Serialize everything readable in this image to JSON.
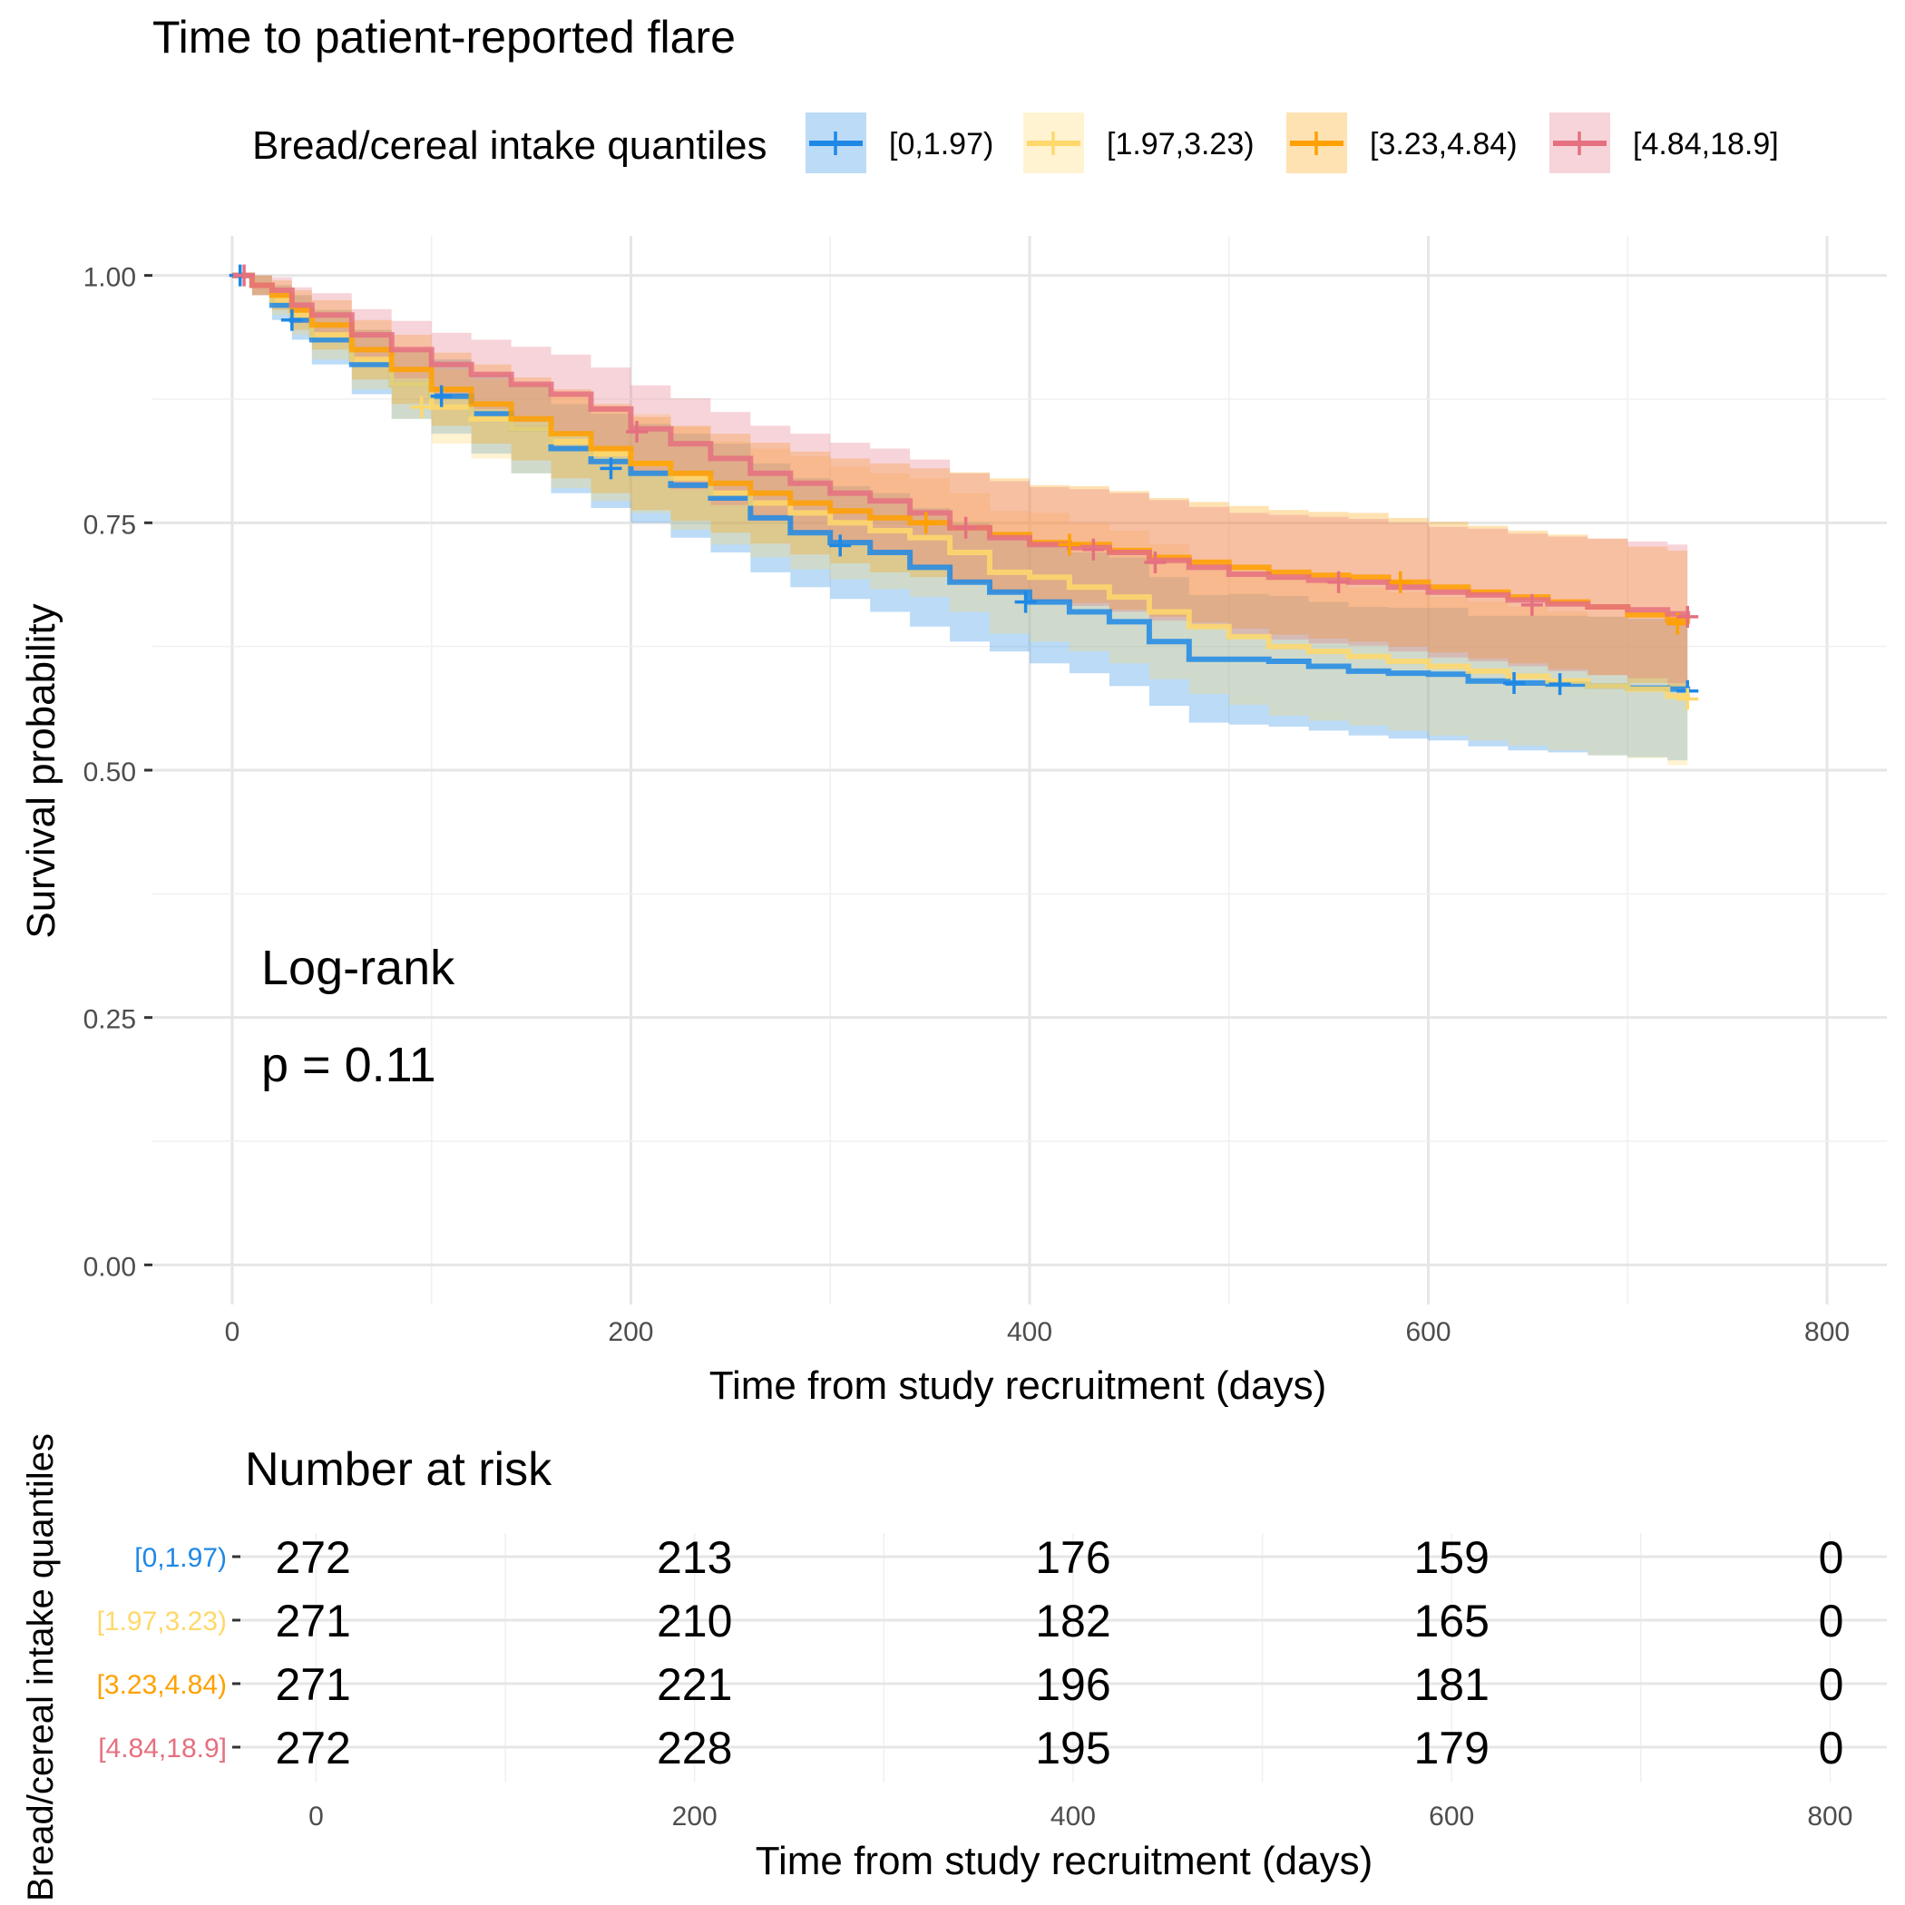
{
  "chart_data": {
    "type": "line",
    "subtype": "kaplan-meier",
    "title": "Time to patient-reported flare",
    "legend": {
      "title": "Bread/cereal intake quantiles",
      "placement": "top"
    },
    "series": [
      {
        "name": "[0,1.97)",
        "color": "#1E88E5",
        "x": [
          0,
          10,
          20,
          30,
          40,
          60,
          80,
          100,
          120,
          140,
          160,
          180,
          200,
          220,
          240,
          260,
          280,
          300,
          320,
          340,
          360,
          380,
          400,
          420,
          440,
          460,
          480,
          500,
          520,
          540,
          560,
          580,
          600,
          620,
          640,
          660,
          680,
          700,
          720,
          730
        ],
        "survival": [
          1.0,
          0.99,
          0.97,
          0.955,
          0.935,
          0.91,
          0.89,
          0.878,
          0.86,
          0.845,
          0.825,
          0.812,
          0.8,
          0.788,
          0.775,
          0.755,
          0.74,
          0.73,
          0.72,
          0.705,
          0.69,
          0.68,
          0.67,
          0.66,
          0.65,
          0.63,
          0.612,
          0.612,
          0.61,
          0.605,
          0.6,
          0.598,
          0.597,
          0.59,
          0.588,
          0.587,
          0.585,
          0.583,
          0.582,
          0.58
        ],
        "lower": [
          1.0,
          0.98,
          0.955,
          0.935,
          0.91,
          0.88,
          0.855,
          0.84,
          0.82,
          0.8,
          0.78,
          0.765,
          0.75,
          0.735,
          0.72,
          0.7,
          0.685,
          0.673,
          0.66,
          0.645,
          0.63,
          0.62,
          0.608,
          0.598,
          0.585,
          0.565,
          0.548,
          0.546,
          0.544,
          0.54,
          0.535,
          0.532,
          0.53,
          0.524,
          0.52,
          0.518,
          0.515,
          0.513,
          0.51,
          0.508
        ],
        "upper": [
          1.0,
          1.0,
          0.99,
          0.98,
          0.965,
          0.945,
          0.925,
          0.915,
          0.9,
          0.89,
          0.87,
          0.86,
          0.85,
          0.84,
          0.83,
          0.81,
          0.795,
          0.787,
          0.78,
          0.765,
          0.75,
          0.74,
          0.73,
          0.72,
          0.715,
          0.695,
          0.677,
          0.678,
          0.676,
          0.67,
          0.665,
          0.664,
          0.664,
          0.656,
          0.656,
          0.656,
          0.655,
          0.653,
          0.654,
          0.652
        ],
        "censor_x": [
          4,
          30,
          105,
          190,
          305,
          398,
          643,
          666,
          730
        ],
        "censor_y": [
          1.0,
          0.955,
          0.878,
          0.805,
          0.727,
          0.67,
          0.588,
          0.587,
          0.58
        ]
      },
      {
        "name": "[1.97,3.23)",
        "color": "#FFD86B",
        "x": [
          0,
          10,
          20,
          30,
          40,
          60,
          80,
          100,
          120,
          140,
          160,
          180,
          200,
          220,
          240,
          260,
          280,
          300,
          320,
          340,
          360,
          380,
          400,
          420,
          440,
          460,
          480,
          500,
          520,
          540,
          560,
          580,
          600,
          620,
          640,
          660,
          680,
          700,
          720,
          730
        ],
        "survival": [
          1.0,
          0.99,
          0.975,
          0.96,
          0.94,
          0.915,
          0.89,
          0.867,
          0.855,
          0.845,
          0.832,
          0.82,
          0.81,
          0.795,
          0.78,
          0.77,
          0.76,
          0.75,
          0.742,
          0.735,
          0.72,
          0.7,
          0.695,
          0.685,
          0.675,
          0.66,
          0.645,
          0.635,
          0.625,
          0.62,
          0.615,
          0.61,
          0.605,
          0.6,
          0.595,
          0.59,
          0.585,
          0.582,
          0.575,
          0.572
        ],
        "lower": [
          1.0,
          0.98,
          0.96,
          0.94,
          0.915,
          0.885,
          0.855,
          0.83,
          0.815,
          0.8,
          0.785,
          0.772,
          0.76,
          0.743,
          0.728,
          0.715,
          0.703,
          0.693,
          0.683,
          0.675,
          0.66,
          0.638,
          0.63,
          0.62,
          0.608,
          0.592,
          0.577,
          0.566,
          0.555,
          0.55,
          0.545,
          0.54,
          0.535,
          0.53,
          0.525,
          0.52,
          0.515,
          0.512,
          0.505,
          0.5
        ],
        "upper": [
          1.0,
          1.0,
          0.99,
          0.98,
          0.965,
          0.945,
          0.925,
          0.905,
          0.895,
          0.89,
          0.88,
          0.868,
          0.86,
          0.847,
          0.832,
          0.825,
          0.817,
          0.807,
          0.8,
          0.795,
          0.78,
          0.762,
          0.76,
          0.75,
          0.742,
          0.728,
          0.713,
          0.704,
          0.695,
          0.69,
          0.685,
          0.68,
          0.675,
          0.67,
          0.665,
          0.66,
          0.655,
          0.652,
          0.645,
          0.644
        ],
        "censor_x": [
          95,
          730
        ],
        "censor_y": [
          0.867,
          0.572
        ]
      },
      {
        "name": "[3.23,4.84)",
        "color": "#FFA000",
        "x": [
          0,
          10,
          20,
          30,
          40,
          60,
          80,
          100,
          120,
          140,
          160,
          180,
          200,
          220,
          240,
          260,
          280,
          300,
          320,
          340,
          360,
          380,
          400,
          420,
          440,
          460,
          480,
          500,
          520,
          540,
          560,
          580,
          600,
          620,
          640,
          660,
          680,
          700,
          720,
          730
        ],
        "survival": [
          1.0,
          0.99,
          0.98,
          0.965,
          0.95,
          0.925,
          0.905,
          0.885,
          0.87,
          0.855,
          0.84,
          0.825,
          0.81,
          0.8,
          0.79,
          0.78,
          0.77,
          0.762,
          0.755,
          0.75,
          0.745,
          0.738,
          0.73,
          0.728,
          0.722,
          0.715,
          0.71,
          0.705,
          0.7,
          0.697,
          0.695,
          0.69,
          0.685,
          0.68,
          0.675,
          0.67,
          0.665,
          0.657,
          0.652,
          0.648
        ],
        "lower": [
          1.0,
          0.98,
          0.965,
          0.945,
          0.925,
          0.895,
          0.87,
          0.848,
          0.83,
          0.813,
          0.795,
          0.78,
          0.763,
          0.752,
          0.74,
          0.729,
          0.718,
          0.709,
          0.7,
          0.695,
          0.689,
          0.681,
          0.672,
          0.669,
          0.662,
          0.655,
          0.649,
          0.643,
          0.637,
          0.633,
          0.63,
          0.625,
          0.619,
          0.613,
          0.608,
          0.602,
          0.596,
          0.588,
          0.582,
          0.577
        ],
        "upper": [
          1.0,
          1.0,
          0.995,
          0.985,
          0.975,
          0.955,
          0.94,
          0.922,
          0.91,
          0.897,
          0.885,
          0.87,
          0.857,
          0.848,
          0.84,
          0.831,
          0.822,
          0.815,
          0.81,
          0.805,
          0.801,
          0.795,
          0.788,
          0.787,
          0.782,
          0.775,
          0.771,
          0.767,
          0.763,
          0.761,
          0.76,
          0.755,
          0.751,
          0.747,
          0.742,
          0.738,
          0.734,
          0.726,
          0.722,
          0.719
        ],
        "censor_x": [
          348,
          420,
          586,
          725
        ],
        "censor_y": [
          0.75,
          0.728,
          0.69,
          0.648
        ]
      },
      {
        "name": "[4.84,18.9]",
        "color": "#E57080",
        "x": [
          0,
          10,
          20,
          30,
          40,
          60,
          80,
          100,
          120,
          140,
          160,
          180,
          200,
          220,
          240,
          260,
          280,
          300,
          320,
          340,
          360,
          380,
          400,
          420,
          440,
          460,
          480,
          500,
          520,
          540,
          560,
          580,
          600,
          620,
          640,
          660,
          680,
          700,
          720,
          730
        ],
        "survival": [
          1.0,
          0.99,
          0.985,
          0.97,
          0.96,
          0.94,
          0.925,
          0.91,
          0.9,
          0.89,
          0.88,
          0.865,
          0.845,
          0.83,
          0.815,
          0.8,
          0.79,
          0.78,
          0.772,
          0.76,
          0.745,
          0.735,
          0.728,
          0.725,
          0.72,
          0.712,
          0.705,
          0.698,
          0.695,
          0.692,
          0.69,
          0.685,
          0.68,
          0.677,
          0.672,
          0.668,
          0.665,
          0.662,
          0.658,
          0.655
        ],
        "lower": [
          1.0,
          0.98,
          0.972,
          0.952,
          0.938,
          0.914,
          0.896,
          0.878,
          0.865,
          0.852,
          0.84,
          0.823,
          0.801,
          0.784,
          0.768,
          0.752,
          0.74,
          0.729,
          0.719,
          0.706,
          0.69,
          0.678,
          0.67,
          0.666,
          0.66,
          0.651,
          0.644,
          0.636,
          0.632,
          0.628,
          0.626,
          0.62,
          0.614,
          0.61,
          0.605,
          0.6,
          0.596,
          0.593,
          0.588,
          0.585
        ],
        "upper": [
          1.0,
          1.0,
          0.998,
          0.988,
          0.982,
          0.966,
          0.954,
          0.942,
          0.935,
          0.928,
          0.92,
          0.907,
          0.889,
          0.876,
          0.862,
          0.848,
          0.84,
          0.831,
          0.825,
          0.814,
          0.8,
          0.792,
          0.786,
          0.784,
          0.78,
          0.773,
          0.766,
          0.76,
          0.758,
          0.756,
          0.754,
          0.75,
          0.746,
          0.744,
          0.739,
          0.736,
          0.734,
          0.731,
          0.728,
          0.725
        ],
        "censor_x": [
          6,
          203,
          368,
          432,
          463,
          555,
          652,
          730
        ],
        "censor_y": [
          1.0,
          0.842,
          0.745,
          0.723,
          0.71,
          0.69,
          0.667,
          0.655
        ]
      }
    ],
    "xlabel": "Time from study recruitment (days)",
    "ylabel": "Survival probability",
    "xlim": [
      -40,
      830
    ],
    "ylim": [
      -0.04,
      1.04
    ],
    "xticks": [
      0,
      200,
      400,
      600,
      800
    ],
    "yticks": [
      0.0,
      0.25,
      0.5,
      0.75,
      1.0
    ],
    "xtick_labels": [
      "0",
      "200",
      "400",
      "600",
      "800"
    ],
    "ytick_labels": [
      "0.00",
      "0.25",
      "0.50",
      "0.75",
      "1.00"
    ],
    "grid": true,
    "annotations": {
      "test": "Log-rank",
      "pvalue": "p = 0.11"
    },
    "risk_table": {
      "title": "Number at risk",
      "ylabel": "Bread/cereal intake quantiles",
      "xlabel": "Time from study recruitment (days)",
      "times": [
        0,
        200,
        400,
        600,
        800
      ],
      "time_labels": [
        "0",
        "200",
        "400",
        "600",
        "800"
      ],
      "rows": [
        {
          "name": "[0,1.97)",
          "color": "#1E88E5",
          "counts": [
            "272",
            "213",
            "176",
            "159",
            "0"
          ]
        },
        {
          "name": "[1.97,3.23)",
          "color": "#FFD86B",
          "counts": [
            "271",
            "210",
            "182",
            "165",
            "0"
          ]
        },
        {
          "name": "[3.23,4.84)",
          "color": "#FFA000",
          "counts": [
            "271",
            "221",
            "196",
            "181",
            "0"
          ]
        },
        {
          "name": "[4.84,18.9]",
          "color": "#E57080",
          "counts": [
            "272",
            "228",
            "195",
            "179",
            "0"
          ]
        }
      ]
    }
  }
}
